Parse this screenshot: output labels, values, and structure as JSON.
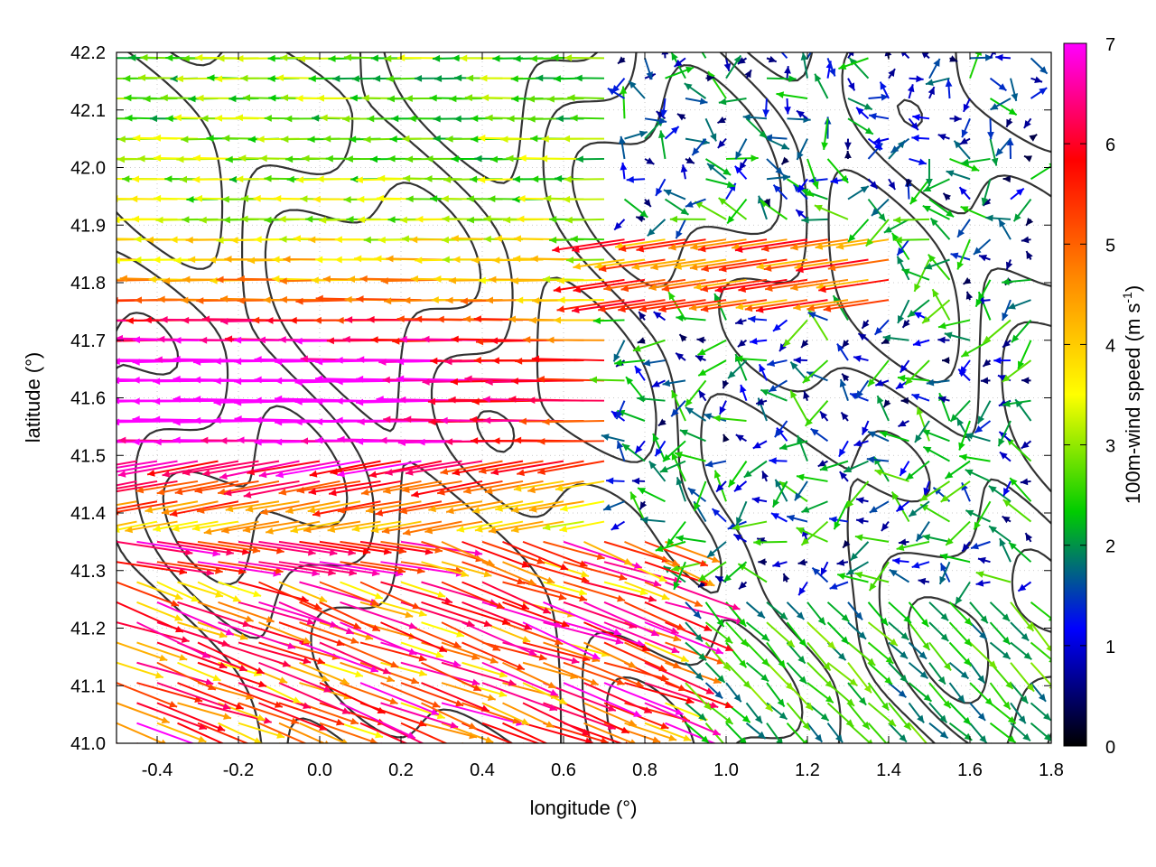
{
  "chart_data": {
    "type": "vector-field",
    "xlabel": "longitude (°)",
    "ylabel": "latitude (°)",
    "xlim": [
      -0.5,
      1.8
    ],
    "ylim": [
      41.0,
      42.2
    ],
    "xticks": [
      "-0.4",
      "-0.2",
      "0.0",
      "0.2",
      "0.4",
      "0.6",
      "0.8",
      "1.0",
      "1.2",
      "1.4",
      "1.6",
      "1.8"
    ],
    "yticks": [
      "41.0",
      "41.1",
      "41.2",
      "41.3",
      "41.4",
      "41.5",
      "41.6",
      "41.7",
      "41.8",
      "41.9",
      "42.0",
      "42.1",
      "42.2"
    ],
    "grid": true,
    "colorbar": {
      "label": "100m-wind speed (m s",
      "label_superscript": "-1",
      "label_close": ")",
      "range": [
        0,
        7
      ],
      "ticks": [
        "0",
        "1",
        "2",
        "3",
        "4",
        "5",
        "6",
        "7"
      ],
      "colors": [
        "#000000",
        "#0000ff",
        "#00cc00",
        "#ffff00",
        "#ff8800",
        "#ff0000",
        "#ff00ff"
      ]
    },
    "contour_color": "#333333",
    "wind_regions": [
      {
        "region": "west, 41.4–42.2N",
        "direction": "from east (westward arrows)",
        "speed_range": [
          2,
          7
        ]
      },
      {
        "region": "central-west, 41.4–41.9N",
        "direction": "from east",
        "speed_range": [
          5,
          7
        ]
      },
      {
        "region": "south-west, 41.0–41.35N",
        "direction": "from west-northwest (eastward-southeastward arrows)",
        "speed_range": [
          3,
          7
        ]
      },
      {
        "region": "north-east, 41.9–42.2N",
        "direction": "variable",
        "speed_range": [
          0,
          3
        ]
      },
      {
        "region": "south-east, 41.0–41.25N",
        "direction": "from northwest (southeastward arrows)",
        "speed_range": [
          1.5,
          3
        ]
      },
      {
        "region": "east-central, 41.3–41.7N",
        "direction": "variable",
        "speed_range": [
          0,
          2
        ]
      }
    ]
  }
}
